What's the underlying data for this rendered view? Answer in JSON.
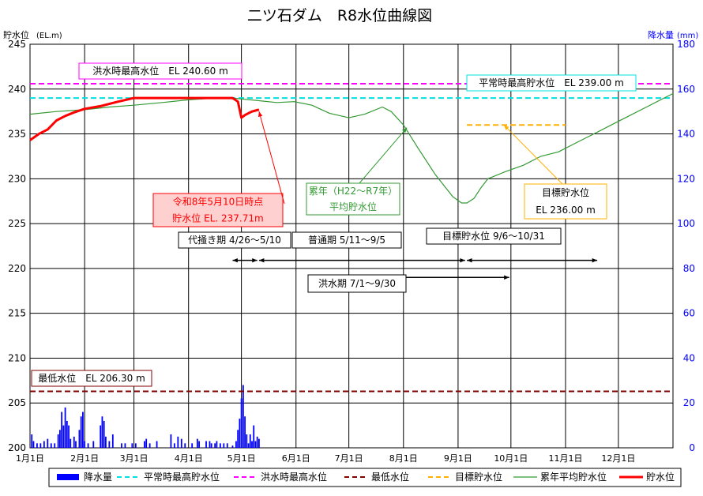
{
  "chart_data": {
    "type": "line",
    "title": "二ツ石ダム　R8水位曲線図",
    "ylabel_left": "貯水位",
    "ylabel_left_unit": "(EL.m)",
    "ylabel_right": "降水量",
    "ylabel_right_unit": "(mm)",
    "ylim_left": [
      200,
      245
    ],
    "ylim_right": [
      0,
      180
    ],
    "left_ticks": [
      "245",
      "240",
      "235",
      "230",
      "225",
      "220",
      "215",
      "210",
      "205",
      "200"
    ],
    "right_ticks": [
      "180",
      "160",
      "140",
      "120",
      "100",
      "80",
      "60",
      "40",
      "20",
      "0"
    ],
    "x_tick_labels": [
      "1月1日",
      "2月1日",
      "3月1日",
      "4月1日",
      "5月1日",
      "6月1日",
      "7月1日",
      "8月1日",
      "9月1日",
      "10月1日",
      "11月1日",
      "12月1日"
    ],
    "x_domain_days": [
      0,
      365
    ],
    "colors": {
      "rain": "#0000ff",
      "normal_max": "#00e0e0",
      "flood_max": "#ff00ff",
      "min_level": "#800000",
      "target": "#ffb000",
      "average": "#339933",
      "level": "#ff0000",
      "right_axis": "#0000ff"
    },
    "hlines": {
      "flood_max": 240.6,
      "normal_max": 239.0,
      "min_level": 206.3,
      "target": {
        "value": 236.0,
        "from_day": 248,
        "to_day": 304
      }
    },
    "series": [
      {
        "name": "累年平均貯水位",
        "days": [
          0,
          15,
          31,
          45,
          59,
          75,
          90,
          105,
          115,
          120,
          130,
          140,
          150,
          160,
          170,
          181,
          190,
          200,
          205,
          212,
          220,
          230,
          240,
          245,
          248,
          252,
          256,
          260,
          270,
          280,
          290,
          300,
          310,
          320,
          330,
          340,
          350,
          360,
          365
        ],
        "values": [
          237.2,
          237.5,
          237.7,
          238.0,
          238.2,
          238.5,
          238.8,
          239.0,
          239.0,
          238.9,
          238.7,
          238.5,
          238.6,
          238.2,
          237.3,
          236.8,
          237.2,
          238.0,
          237.5,
          236.0,
          233.5,
          230.5,
          228.0,
          227.3,
          227.3,
          227.8,
          229.0,
          230.0,
          230.8,
          231.5,
          232.5,
          233.0,
          234.0,
          235.0,
          236.0,
          237.0,
          238.0,
          239.0,
          239.5
        ]
      },
      {
        "name": "貯水位",
        "days": [
          0,
          5,
          10,
          15,
          20,
          25,
          31,
          40,
          50,
          59,
          70,
          90,
          100,
          105,
          110,
          115,
          118,
          120,
          122,
          124,
          126,
          128,
          130
        ],
        "values": [
          234.3,
          235.0,
          235.5,
          236.5,
          237.0,
          237.4,
          237.8,
          238.1,
          238.6,
          239.0,
          239.0,
          239.0,
          239.0,
          239.0,
          239.0,
          239.0,
          238.6,
          236.8,
          237.1,
          237.3,
          237.5,
          237.6,
          237.71
        ]
      }
    ],
    "rain_daily_mm": [
      [
        1,
        6
      ],
      [
        2,
        3
      ],
      [
        4,
        2
      ],
      [
        6,
        2
      ],
      [
        8,
        3
      ],
      [
        10,
        4
      ],
      [
        12,
        2
      ],
      [
        14,
        2
      ],
      [
        16,
        6
      ],
      [
        17,
        8
      ],
      [
        18,
        16
      ],
      [
        19,
        10
      ],
      [
        20,
        18
      ],
      [
        21,
        12
      ],
      [
        22,
        10
      ],
      [
        23,
        4
      ],
      [
        25,
        5
      ],
      [
        26,
        3
      ],
      [
        28,
        8
      ],
      [
        29,
        14
      ],
      [
        30,
        16
      ],
      [
        31,
        3
      ],
      [
        33,
        2
      ],
      [
        36,
        3
      ],
      [
        40,
        10
      ],
      [
        41,
        14
      ],
      [
        42,
        12
      ],
      [
        43,
        5
      ],
      [
        45,
        3
      ],
      [
        47,
        6
      ],
      [
        52,
        2
      ],
      [
        54,
        2
      ],
      [
        58,
        2
      ],
      [
        60,
        2
      ],
      [
        65,
        3
      ],
      [
        66,
        4
      ],
      [
        68,
        2
      ],
      [
        72,
        3
      ],
      [
        80,
        6
      ],
      [
        82,
        2
      ],
      [
        84,
        5
      ],
      [
        86,
        4
      ],
      [
        88,
        2
      ],
      [
        92,
        2
      ],
      [
        95,
        4
      ],
      [
        96,
        3
      ],
      [
        100,
        3
      ],
      [
        102,
        3
      ],
      [
        103,
        2
      ],
      [
        105,
        2
      ],
      [
        106,
        3
      ],
      [
        108,
        2
      ],
      [
        110,
        2
      ],
      [
        112,
        2
      ],
      [
        115,
        1
      ],
      [
        117,
        3
      ],
      [
        118,
        8
      ],
      [
        119,
        13
      ],
      [
        120,
        22
      ],
      [
        121,
        28
      ],
      [
        122,
        14
      ],
      [
        123,
        6
      ],
      [
        124,
        2
      ],
      [
        125,
        6
      ],
      [
        126,
        3
      ],
      [
        127,
        10
      ],
      [
        128,
        3
      ],
      [
        129,
        5
      ],
      [
        130,
        4
      ]
    ],
    "annotations": {
      "flood_max_label": "洪水時最高水位　EL 240.60 m",
      "normal_max_label": "平常時最高貯水位　EL 239.00 m",
      "min_level_label": "最低水位　EL 206.30 m",
      "target_label_1": "目標貯水位",
      "target_label_2": "EL 236.00 m",
      "current_label_1": "令和8年5月10日時点",
      "current_label_2": "貯水位 EL. 237.71m",
      "avg_label_1": "累年（H22～R7年）",
      "avg_label_2": "平均貯水位"
    },
    "periods": [
      {
        "label": "代掻き期 4/26～5/10",
        "from_day": 115,
        "to_day": 129
      },
      {
        "label": "普通期 5/11～9/5",
        "from_day": 130,
        "to_day": 247
      },
      {
        "label": "目標貯水位 9/6～10/31",
        "from_day": 248,
        "to_day": 303
      },
      {
        "label": "洪水期 7/1～9/30",
        "from_day": 181,
        "to_day": 272
      }
    ],
    "legend": {
      "position": "bottom",
      "items": [
        "降水量",
        "平常時最高貯水位",
        "洪水時最高水位",
        "最低水位",
        "目標貯水位",
        "累年平均貯水位",
        "貯水位"
      ]
    }
  }
}
